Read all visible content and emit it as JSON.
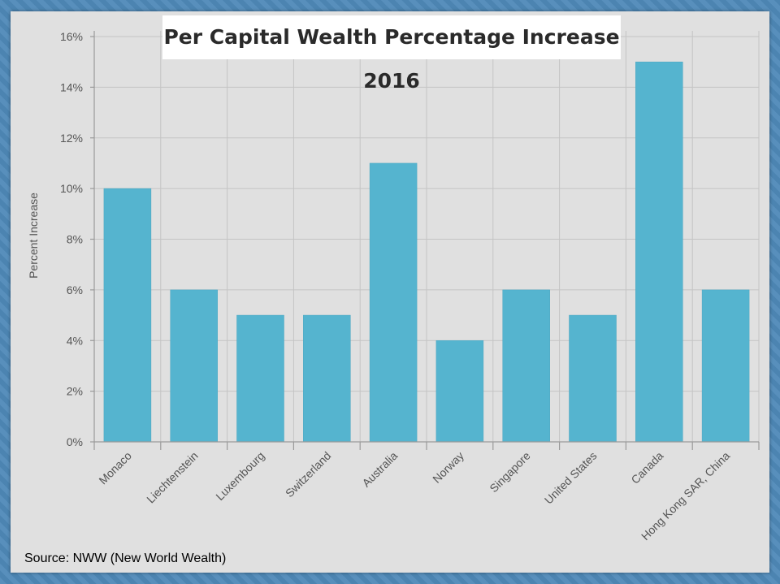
{
  "chart_data": {
    "type": "bar",
    "title": "Per Capital Wealth Percentage Increase 2016",
    "ylabel": "Percent Increase",
    "xlabel": "",
    "categories": [
      "Monaco",
      "Liechtenstein",
      "Luxembourg",
      "Switzerland",
      "Australia",
      "Norway",
      "Singapore",
      "United States",
      "Canada",
      "Hong Kong SAR, China"
    ],
    "values": [
      10,
      6,
      5,
      5,
      11,
      4,
      6,
      5,
      15,
      6
    ],
    "y_ticks": [
      "0%",
      "2%",
      "4%",
      "6%",
      "8%",
      "10%",
      "12%",
      "14%",
      "16%"
    ],
    "ylim": [
      0,
      16
    ],
    "grid": true,
    "bar_color": "#55b4cf"
  },
  "source": "Source: NWW (New World Wealth)"
}
